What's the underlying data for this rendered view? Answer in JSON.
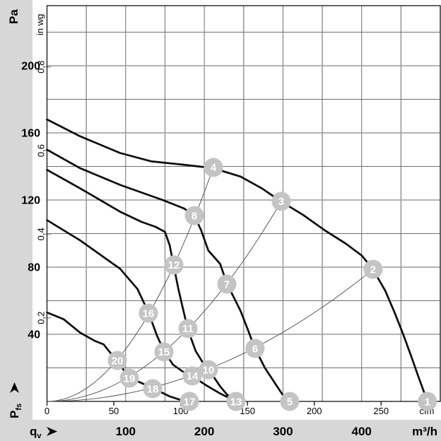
{
  "page": {
    "background": "#ffffff",
    "margin_color": "#d7d7d7",
    "band_color": "#d7d7d7",
    "plot_background": "#ffffff"
  },
  "colors": {
    "curve": "#0d0d0d",
    "system_line": "#4a4a4a",
    "grid": "#6e6e6e",
    "grid_major": "#9b9b9b",
    "border": "#000000",
    "point_fill": "#c4c4c4",
    "point_label": "#ffffff",
    "text": "#000000"
  },
  "axes": {
    "pa": {
      "unit": "Pa",
      "ticks": [
        40,
        80,
        120,
        160,
        200
      ]
    },
    "inwg": {
      "unit": "in wg",
      "ticks": [
        "0.2",
        "0.4",
        "0.6",
        "0.8"
      ]
    },
    "qv": {
      "label_base": "q",
      "label_sub": "v",
      "unit": "m³/h",
      "ticks": [
        100,
        200,
        300,
        400
      ]
    },
    "cfm": {
      "unit": "cfm",
      "ticks": [
        0,
        50,
        100,
        150,
        200,
        250
      ]
    },
    "pfs": {
      "label_base": "P",
      "label_sub": "fs"
    }
  },
  "chart_data": {
    "type": "line",
    "xlabel": "qv",
    "x_unit": "m³/h",
    "x_secondary_unit": "cfm",
    "ylabel": "Pfs",
    "y_unit": "Pa",
    "y_secondary_unit": "in wg",
    "xlim": [
      0,
      500
    ],
    "ylim": [
      0,
      236
    ],
    "x_grid_step": 50,
    "y_grid_step": 20,
    "grid": true,
    "legend_position": "none",
    "unit_conversions": {
      "cfm_to_m3h": 1.699,
      "inwg_to_pa": 249.089
    },
    "fan_curves": [
      {
        "name": "fan-curve-1",
        "points": [
          [
            0,
            168
          ],
          [
            42,
            158
          ],
          [
            93,
            148
          ],
          [
            133,
            143
          ],
          [
            174,
            141
          ],
          [
            211,
            139
          ],
          [
            246,
            134
          ],
          [
            273,
            127
          ],
          [
            298,
            119
          ],
          [
            326,
            111
          ],
          [
            353,
            102
          ],
          [
            380,
            94
          ],
          [
            400,
            87
          ],
          [
            414,
            79
          ],
          [
            430,
            66
          ],
          [
            441,
            54
          ],
          [
            452,
            41
          ],
          [
            463,
            27
          ],
          [
            472,
            15
          ],
          [
            479,
            6
          ],
          [
            484,
            0
          ]
        ]
      },
      {
        "name": "fan-curve-2",
        "points": [
          [
            0,
            150
          ],
          [
            42,
            139
          ],
          [
            93,
            129
          ],
          [
            147,
            120
          ],
          [
            174,
            115
          ],
          [
            187,
            111
          ],
          [
            196,
            102
          ],
          [
            205,
            90
          ],
          [
            220,
            82
          ],
          [
            229,
            70
          ],
          [
            246,
            54
          ],
          [
            256,
            42
          ],
          [
            264,
            32
          ],
          [
            277,
            20
          ],
          [
            291,
            10
          ],
          [
            301,
            3
          ],
          [
            308,
            0
          ]
        ]
      },
      {
        "name": "fan-curve-3",
        "points": [
          [
            0,
            138
          ],
          [
            42,
            127
          ],
          [
            93,
            113
          ],
          [
            120,
            107
          ],
          [
            138,
            104
          ],
          [
            150,
            101
          ],
          [
            156,
            93
          ],
          [
            161,
            81
          ],
          [
            167,
            67
          ],
          [
            172,
            57
          ],
          [
            179,
            43
          ],
          [
            189,
            30
          ],
          [
            201,
            21
          ],
          [
            210,
            16
          ],
          [
            220,
            9
          ],
          [
            229,
            4
          ],
          [
            240,
            0
          ]
        ]
      },
      {
        "name": "fan-curve-4",
        "points": [
          [
            0,
            108
          ],
          [
            42,
            96
          ],
          [
            93,
            79
          ],
          [
            115,
            67
          ],
          [
            129,
            53
          ],
          [
            140,
            39
          ],
          [
            149,
            30
          ],
          [
            160,
            22
          ],
          [
            172,
            18
          ],
          [
            185,
            15
          ],
          [
            201,
            10
          ],
          [
            219,
            5
          ],
          [
            240,
            0
          ]
        ]
      },
      {
        "name": "fan-curve-5",
        "points": [
          [
            0,
            53
          ],
          [
            21,
            49
          ],
          [
            42,
            41
          ],
          [
            61,
            36
          ],
          [
            72,
            34
          ],
          [
            89,
            24
          ],
          [
            105,
            14
          ],
          [
            120,
            11
          ],
          [
            134,
            8
          ],
          [
            156,
            3
          ],
          [
            169,
            1
          ],
          [
            181,
            0
          ]
        ]
      }
    ],
    "system_lines": [
      {
        "name": "system-line-A",
        "k": 0.003117,
        "qv_end": 211.5
      },
      {
        "name": "system-line-B",
        "k": 0.001344,
        "qv_end": 297.8
      },
      {
        "name": "system-line-C",
        "k": 0.000458,
        "qv_end": 414.5
      }
    ],
    "operating_points": [
      {
        "label": "20",
        "qv": 89.4,
        "pa": 24.4
      },
      {
        "label": "19",
        "qv": 104.7,
        "pa": 13.9
      },
      {
        "label": "18",
        "qv": 134.3,
        "pa": 7.6
      },
      {
        "label": "17",
        "qv": 181.0,
        "pa": 0
      },
      {
        "label": "16",
        "qv": 128.9,
        "pa": 52.6
      },
      {
        "label": "15",
        "qv": 148.7,
        "pa": 29.5
      },
      {
        "label": "14",
        "qv": 184.6,
        "pa": 15.2
      },
      {
        "label": "13",
        "qv": 240.3,
        "pa": 0
      },
      {
        "label": "12",
        "qv": 161.3,
        "pa": 81.3
      },
      {
        "label": "11",
        "qv": 179.2,
        "pa": 43.4
      },
      {
        "label": "10",
        "qv": 205.2,
        "pa": 18.9
      },
      {
        "label": "8",
        "qv": 187.3,
        "pa": 110.7
      },
      {
        "label": "7",
        "qv": 228.6,
        "pa": 69.9
      },
      {
        "label": "6",
        "qv": 264.5,
        "pa": 31.6
      },
      {
        "label": "5",
        "qv": 308.5,
        "pa": 0
      },
      {
        "label": "4",
        "qv": 211.5,
        "pa": 139.4
      },
      {
        "label": "3",
        "qv": 297.8,
        "pa": 119.2
      },
      {
        "label": "2",
        "qv": 414.5,
        "pa": 78.7
      },
      {
        "label": "1",
        "qv": 483.6,
        "pa": 0
      }
    ]
  }
}
